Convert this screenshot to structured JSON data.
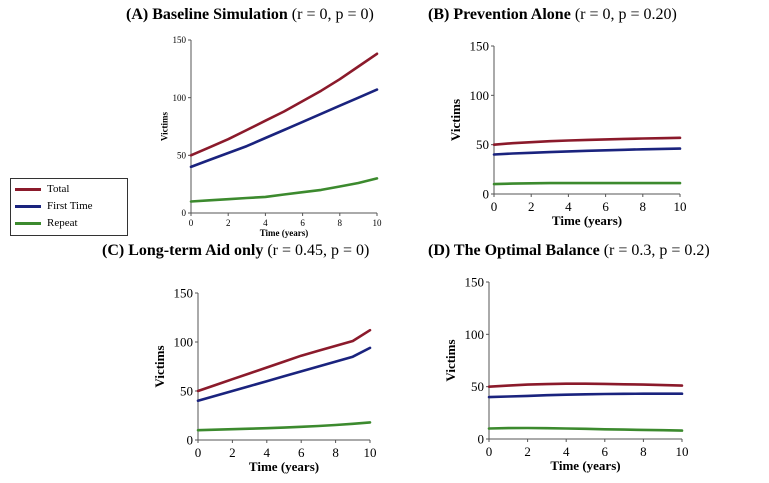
{
  "legend": [
    {
      "label": "Total",
      "color": "#8b1a2b"
    },
    {
      "label": "First Time",
      "color": "#1a237e"
    },
    {
      "label": "Repeat",
      "color": "#3c8a2e"
    }
  ],
  "chart_data": [
    {
      "type": "line",
      "title_bold": "(A) Baseline Simulation",
      "title_params": "(r = 0, p = 0)",
      "xlabel": "Time (years)",
      "ylabel": "Victims",
      "xlim": [
        0,
        10
      ],
      "ylim": [
        0,
        150
      ],
      "xticks": [
        "0",
        "2",
        "4",
        "6",
        "8",
        "10"
      ],
      "yticks": [
        "0",
        "50",
        "100",
        "150"
      ],
      "x": [
        0,
        1,
        2,
        3,
        4,
        5,
        6,
        7,
        8,
        9,
        10
      ],
      "series": [
        {
          "name": "Total",
          "color": "#8b1a2b",
          "values": [
            50,
            57,
            64,
            72,
            80,
            88,
            97,
            106,
            116,
            127,
            138
          ]
        },
        {
          "name": "First Time",
          "color": "#1a237e",
          "values": [
            40,
            46,
            52,
            58,
            65,
            72,
            79,
            86,
            93,
            100,
            107
          ]
        },
        {
          "name": "Repeat",
          "color": "#3c8a2e",
          "values": [
            10,
            11,
            12,
            13,
            14,
            16,
            18,
            20,
            23,
            26,
            30
          ]
        }
      ]
    },
    {
      "type": "line",
      "title_bold": "(B) Prevention Alone",
      "title_params": "(r = 0, p = 0.20)",
      "xlabel": "Time (years)",
      "ylabel": "Victims",
      "xlim": [
        0,
        10
      ],
      "ylim": [
        0,
        150
      ],
      "xticks": [
        "0",
        "2",
        "4",
        "6",
        "8",
        "10"
      ],
      "yticks": [
        "0",
        "50",
        "100",
        "150"
      ],
      "x": [
        0,
        1,
        2,
        3,
        4,
        5,
        6,
        7,
        8,
        9,
        10
      ],
      "series": [
        {
          "name": "Total",
          "color": "#8b1a2b",
          "values": [
            50,
            51.5,
            52.5,
            53.5,
            54.2,
            54.8,
            55.3,
            55.8,
            56.2,
            56.6,
            57
          ]
        },
        {
          "name": "First Time",
          "color": "#1a237e",
          "values": [
            40,
            41,
            41.8,
            42.5,
            43.2,
            43.8,
            44.3,
            44.8,
            45.3,
            45.7,
            46
          ]
        },
        {
          "name": "Repeat",
          "color": "#3c8a2e",
          "values": [
            10,
            10.5,
            10.8,
            11,
            11,
            11,
            11,
            11,
            11,
            11,
            11
          ]
        }
      ]
    },
    {
      "type": "line",
      "title_bold": "(C) Long-term Aid only",
      "title_params": "(r = 0.45, p = 0)",
      "xlabel": "Time (years)",
      "ylabel": "Victims",
      "xlim": [
        0,
        10
      ],
      "ylim": [
        0,
        150
      ],
      "xticks": [
        "0",
        "2",
        "4",
        "6",
        "8",
        "10"
      ],
      "yticks": [
        "0",
        "50",
        "100",
        "150"
      ],
      "x": [
        0,
        1,
        2,
        3,
        4,
        5,
        6,
        7,
        8,
        9,
        10
      ],
      "series": [
        {
          "name": "Total",
          "color": "#8b1a2b",
          "values": [
            50,
            56,
            62,
            68,
            74,
            80,
            86,
            91,
            96,
            101,
            112
          ]
        },
        {
          "name": "First Time",
          "color": "#1a237e",
          "values": [
            40,
            45,
            50,
            55,
            60,
            65,
            70,
            75,
            80,
            85,
            94
          ]
        },
        {
          "name": "Repeat",
          "color": "#3c8a2e",
          "values": [
            10,
            10.5,
            11,
            11.5,
            12,
            12.7,
            13.5,
            14.3,
            15.3,
            16.5,
            18
          ]
        }
      ]
    },
    {
      "type": "line",
      "title_bold": "(D) The Optimal Balance",
      "title_params": "(r = 0.3, p = 0.2)",
      "xlabel": "Time (years)",
      "ylabel": "Victims",
      "xlim": [
        0,
        10
      ],
      "ylim": [
        0,
        150
      ],
      "xticks": [
        "0",
        "2",
        "4",
        "6",
        "8",
        "10"
      ],
      "yticks": [
        "0",
        "50",
        "100",
        "150"
      ],
      "x": [
        0,
        1,
        2,
        3,
        4,
        5,
        6,
        7,
        8,
        9,
        10
      ],
      "series": [
        {
          "name": "Total",
          "color": "#8b1a2b",
          "values": [
            50,
            51,
            52,
            52.5,
            52.8,
            52.8,
            52.6,
            52.3,
            52,
            51.5,
            51
          ]
        },
        {
          "name": "First Time",
          "color": "#1a237e",
          "values": [
            40,
            40.6,
            41.2,
            41.8,
            42.3,
            42.7,
            43,
            43.2,
            43.3,
            43.3,
            43.3
          ]
        },
        {
          "name": "Repeat",
          "color": "#3c8a2e",
          "values": [
            10,
            10.4,
            10.5,
            10.3,
            10,
            9.7,
            9.3,
            9,
            8.7,
            8.4,
            8
          ]
        }
      ]
    }
  ]
}
